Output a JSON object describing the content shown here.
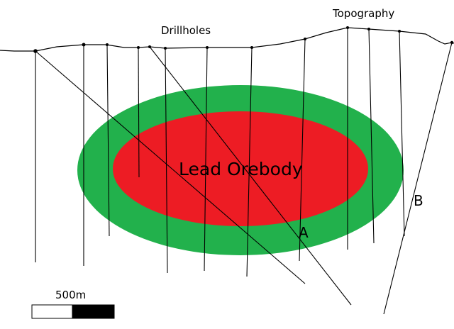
{
  "labels": {
    "topography": "Topography",
    "drillholes": "Drillholes",
    "orebody": "Lead Orebody",
    "hole_a": "A",
    "hole_b": "B",
    "scale": "500m"
  },
  "colors": {
    "outer_zone": "#22b14c",
    "orebody": "#ed1c24",
    "lines": "#000000",
    "background": "#ffffff"
  }
}
